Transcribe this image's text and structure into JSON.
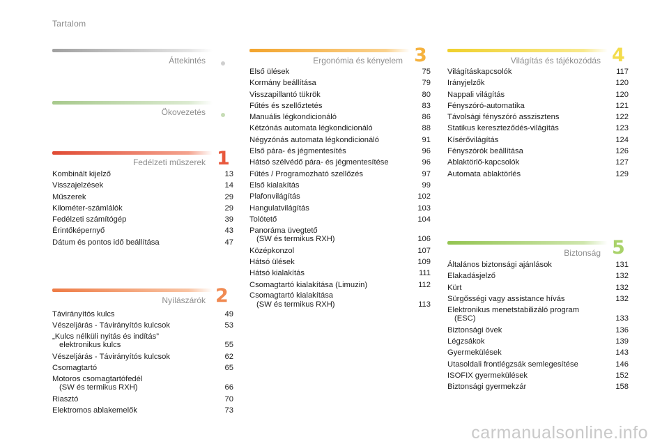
{
  "page_title": "Tartalom",
  "sections": {
    "attekintes": {
      "title": "Áttekintés",
      "badge": "",
      "bar_color": "#c8c8c8",
      "dot_color": "#d0d0d0"
    },
    "okovezetes": {
      "title": "Ökovezetés",
      "badge": "",
      "bar_color": "#bcd6a6",
      "dot_color": "#c6dcb5"
    },
    "fedelzeti": {
      "title": "Fedélzeti műszerek",
      "badge": "1",
      "bar_color": "#e8583c",
      "items": [
        {
          "t": "Kombinált kijelző",
          "t2": "",
          "p": "13"
        },
        {
          "t": "Visszajelzések",
          "t2": "",
          "p": "14"
        },
        {
          "t": "Műszerek",
          "t2": "",
          "p": "29"
        },
        {
          "t": "Kilométer-számlálók",
          "t2": "",
          "p": "29"
        },
        {
          "t": "Fedélzeti számítógép",
          "t2": "",
          "p": "39"
        },
        {
          "t": "Érintőképernyő",
          "t2": "",
          "p": "43"
        },
        {
          "t": "Dátum és pontos idő beállítása",
          "t2": "",
          "p": "47"
        }
      ]
    },
    "nyilaszarok": {
      "title": "Nyílászárók",
      "badge": "2",
      "bar_color": "#f08a52",
      "items": [
        {
          "t": "Távirányítós kulcs",
          "t2": "",
          "p": "49"
        },
        {
          "t": "Vészeljárás - Távirányítós kulcsok",
          "t2": "",
          "p": "53"
        },
        {
          "t": "„Kulcs nélküli nyitás és indítás”",
          "t2": "elektronikus kulcs",
          "p": "55"
        },
        {
          "t": "Vészeljárás - Távirányítós kulcsok",
          "t2": "",
          "p": "62"
        },
        {
          "t": "Csomagtartó",
          "t2": "",
          "p": "65"
        },
        {
          "t": "Motoros csomagtartófedél",
          "t2": "(SW és termikus RXH)",
          "p": "66"
        },
        {
          "t": "Riasztó",
          "t2": "",
          "p": "70"
        },
        {
          "t": "Elektromos ablakemelők",
          "t2": "",
          "p": "73"
        }
      ]
    },
    "ergonomia": {
      "title": "Ergonómia és kényelem",
      "badge": "3",
      "bar_color": "#f5b23e",
      "items": [
        {
          "t": "Első ülések",
          "t2": "",
          "p": "75"
        },
        {
          "t": "Kormány beállítása",
          "t2": "",
          "p": "79"
        },
        {
          "t": "Visszapillantó tükrök",
          "t2": "",
          "p": "80"
        },
        {
          "t": "Fűtés és szellőztetés",
          "t2": "",
          "p": "83"
        },
        {
          "t": "Manuális légkondicionáló",
          "t2": "",
          "p": "86"
        },
        {
          "t": "Kétzónás automata légkondicionáló",
          "t2": "",
          "p": "88"
        },
        {
          "t": "Négyzónás automata légkondicionáló",
          "t2": "",
          "p": "91"
        },
        {
          "t": "Első pára- és jégmentesítés",
          "t2": "",
          "p": "96"
        },
        {
          "t": "Hátsó szélvédő pára- és jégmentesítése",
          "t2": "",
          "p": "96"
        },
        {
          "t": "Fűtés / Programozható szellőzés",
          "t2": "",
          "p": "97"
        },
        {
          "t": "Első kialakítás",
          "t2": "",
          "p": "99"
        },
        {
          "t": "Plafonvilágítás",
          "t2": "",
          "p": "102"
        },
        {
          "t": "Hangulatvilágítás",
          "t2": "",
          "p": "103"
        },
        {
          "t": "Tolótető",
          "t2": "",
          "p": "104"
        },
        {
          "t": "Panoráma üvegtető",
          "t2": "(SW és termikus RXH)",
          "p": "106"
        },
        {
          "t": "Középkonzol",
          "t2": "",
          "p": "107"
        },
        {
          "t": "Hátsó ülések",
          "t2": "",
          "p": "109"
        },
        {
          "t": "Hátsó kialakítás",
          "t2": "",
          "p": "111"
        },
        {
          "t": "Csomagtartó kialakítása (Limuzin)",
          "t2": "",
          "p": "112"
        },
        {
          "t": "Csomagtartó kialakítása",
          "t2": "(SW és termikus RXH)",
          "p": "113"
        }
      ]
    },
    "vilagitas": {
      "title": "Világítás és tájékozódás",
      "badge": "4",
      "bar_color": "#f3dc4c",
      "items": [
        {
          "t": "Világításkapcsolók",
          "t2": "",
          "p": "117"
        },
        {
          "t": "Irányjelzők",
          "t2": "",
          "p": "120"
        },
        {
          "t": "Nappali világítás",
          "t2": "",
          "p": "120"
        },
        {
          "t": "Fényszóró-automatika",
          "t2": "",
          "p": "121"
        },
        {
          "t": "Távolsági fényszóró asszisztens",
          "t2": "",
          "p": "122"
        },
        {
          "t": "Statikus kereszteződés-világítás",
          "t2": "",
          "p": "123"
        },
        {
          "t": "Kísérővilágítás",
          "t2": "",
          "p": "124"
        },
        {
          "t": "Fényszórók beállítása",
          "t2": "",
          "p": "126"
        },
        {
          "t": "Ablaktörlő-kapcsolók",
          "t2": "",
          "p": "127"
        },
        {
          "t": "Automata ablaktörlés",
          "t2": "",
          "p": "129"
        }
      ]
    },
    "biztonsag": {
      "title": "Biztonság",
      "badge": "5",
      "bar_color": "#a9d26a",
      "items": [
        {
          "t": "Általános biztonsági ajánlások",
          "t2": "",
          "p": "131"
        },
        {
          "t": "Elakadásjelző",
          "t2": "",
          "p": "132"
        },
        {
          "t": "Kürt",
          "t2": "",
          "p": "132"
        },
        {
          "t": "Sürgősségi vagy assistance hívás",
          "t2": "",
          "p": "132"
        },
        {
          "t": "Elektronikus menetstabilizáló program",
          "t2": "(ESC)",
          "p": "133"
        },
        {
          "t": "Biztonsági övek",
          "t2": "",
          "p": "136"
        },
        {
          "t": "Légzsákok",
          "t2": "",
          "p": "139"
        },
        {
          "t": "Gyermekülések",
          "t2": "",
          "p": "143"
        },
        {
          "t": "Utasoldali frontlégzsák semlegesítése",
          "t2": "",
          "p": "146"
        },
        {
          "t": "ISOFIX gyermekülések",
          "t2": "",
          "p": "152"
        },
        {
          "t": "Biztonsági gyermekzár",
          "t2": "",
          "p": "158"
        }
      ]
    }
  },
  "watermark": "carmanualsonline.info"
}
